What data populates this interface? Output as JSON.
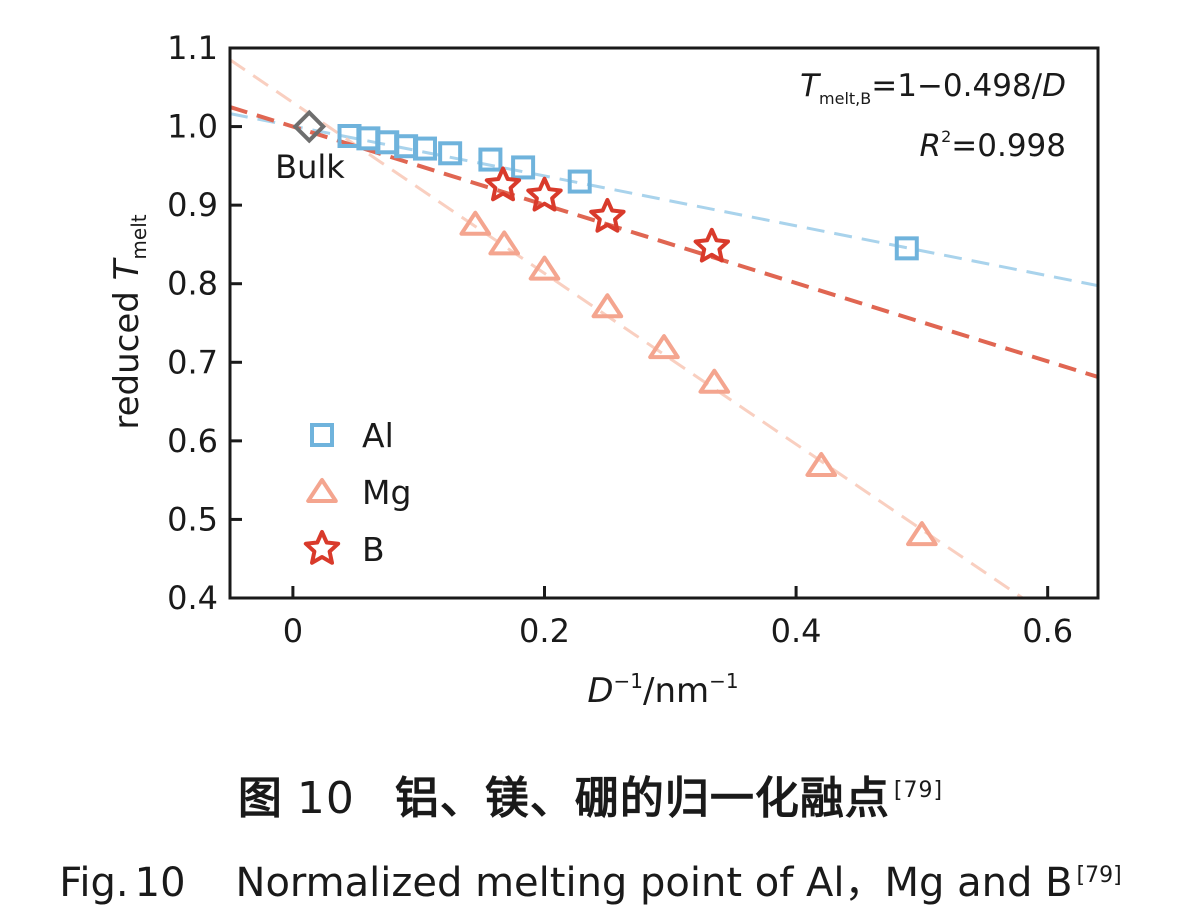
{
  "chart_data": {
    "type": "scatter",
    "xlabel": {
      "main": "D",
      "sup1": "−1",
      "unit": "/nm",
      "sup2": "−1"
    },
    "ylabel": {
      "main": "reduced ",
      "italic": "T",
      "sub": "melt"
    },
    "xlim": [
      -0.05,
      0.64
    ],
    "ylim": [
      0.4,
      1.1
    ],
    "xticks": [
      0,
      0.2,
      0.4,
      0.6
    ],
    "xtick_labels": [
      "0",
      "0.2",
      "0.4",
      "0.6"
    ],
    "yticks": [
      0.4,
      0.5,
      0.6,
      0.7,
      0.8,
      0.9,
      1.0,
      1.1
    ],
    "ytick_labels": [
      "0.4",
      "0.5",
      "0.6",
      "0.7",
      "0.8",
      "0.9",
      "1.0",
      "1.1"
    ],
    "grid": false,
    "legend_position": "bottom-left",
    "series": [
      {
        "name": "Al",
        "marker": "square",
        "color": "#6fb3dc",
        "x": [
          0.045,
          0.06,
          0.075,
          0.09,
          0.105,
          0.125,
          0.157,
          0.183,
          0.228,
          0.488
        ],
        "y": [
          0.988,
          0.985,
          0.98,
          0.975,
          0.972,
          0.966,
          0.958,
          0.948,
          0.93,
          0.845
        ]
      },
      {
        "name": "Mg",
        "marker": "triangle",
        "color": "#f4a58f",
        "x": [
          0.145,
          0.168,
          0.2,
          0.25,
          0.295,
          0.335,
          0.42,
          0.5
        ],
        "y": [
          0.875,
          0.85,
          0.818,
          0.77,
          0.718,
          0.674,
          0.568,
          0.48
        ]
      },
      {
        "name": "B",
        "marker": "star",
        "color": "#d93a2b",
        "x": [
          0.167,
          0.2,
          0.25,
          0.333
        ],
        "y": [
          0.925,
          0.912,
          0.885,
          0.847
        ]
      },
      {
        "name": "",
        "marker": "diamond",
        "color": "#6e6e6e",
        "x": [
          0.013
        ],
        "y": [
          1.0
        ]
      }
    ],
    "fit_lines": [
      {
        "series": "Al",
        "color": "#a9d3ec",
        "x": [
          -0.05,
          0.64
        ],
        "y": [
          1.0165,
          0.7975
        ]
      },
      {
        "series": "Mg",
        "color": "#f9cfc0",
        "x": [
          -0.05,
          0.58
        ],
        "y": [
          1.085,
          0.4
        ]
      },
      {
        "series": "B",
        "color": "#e06652",
        "x": [
          -0.05,
          0.64
        ],
        "y": [
          1.0249,
          0.6813
        ]
      }
    ],
    "annotations": {
      "bulk": "Bulk",
      "equation": {
        "T": "T",
        "sub": "melt,B",
        "rest": "=1−0.498/",
        "D": "D"
      },
      "r2": {
        "R": "R",
        "sup": "2",
        "rest": "=0.998"
      }
    }
  },
  "caption": {
    "cn_label": "图",
    "cn_num": "10",
    "cn_text": "铝、镁、硼的归一化融点",
    "cn_ref": "[79]",
    "en_label": "Fig.",
    "en_num": "10",
    "en_text": "Normalized melting point of Al，Mg and B",
    "en_ref": "[79]"
  }
}
